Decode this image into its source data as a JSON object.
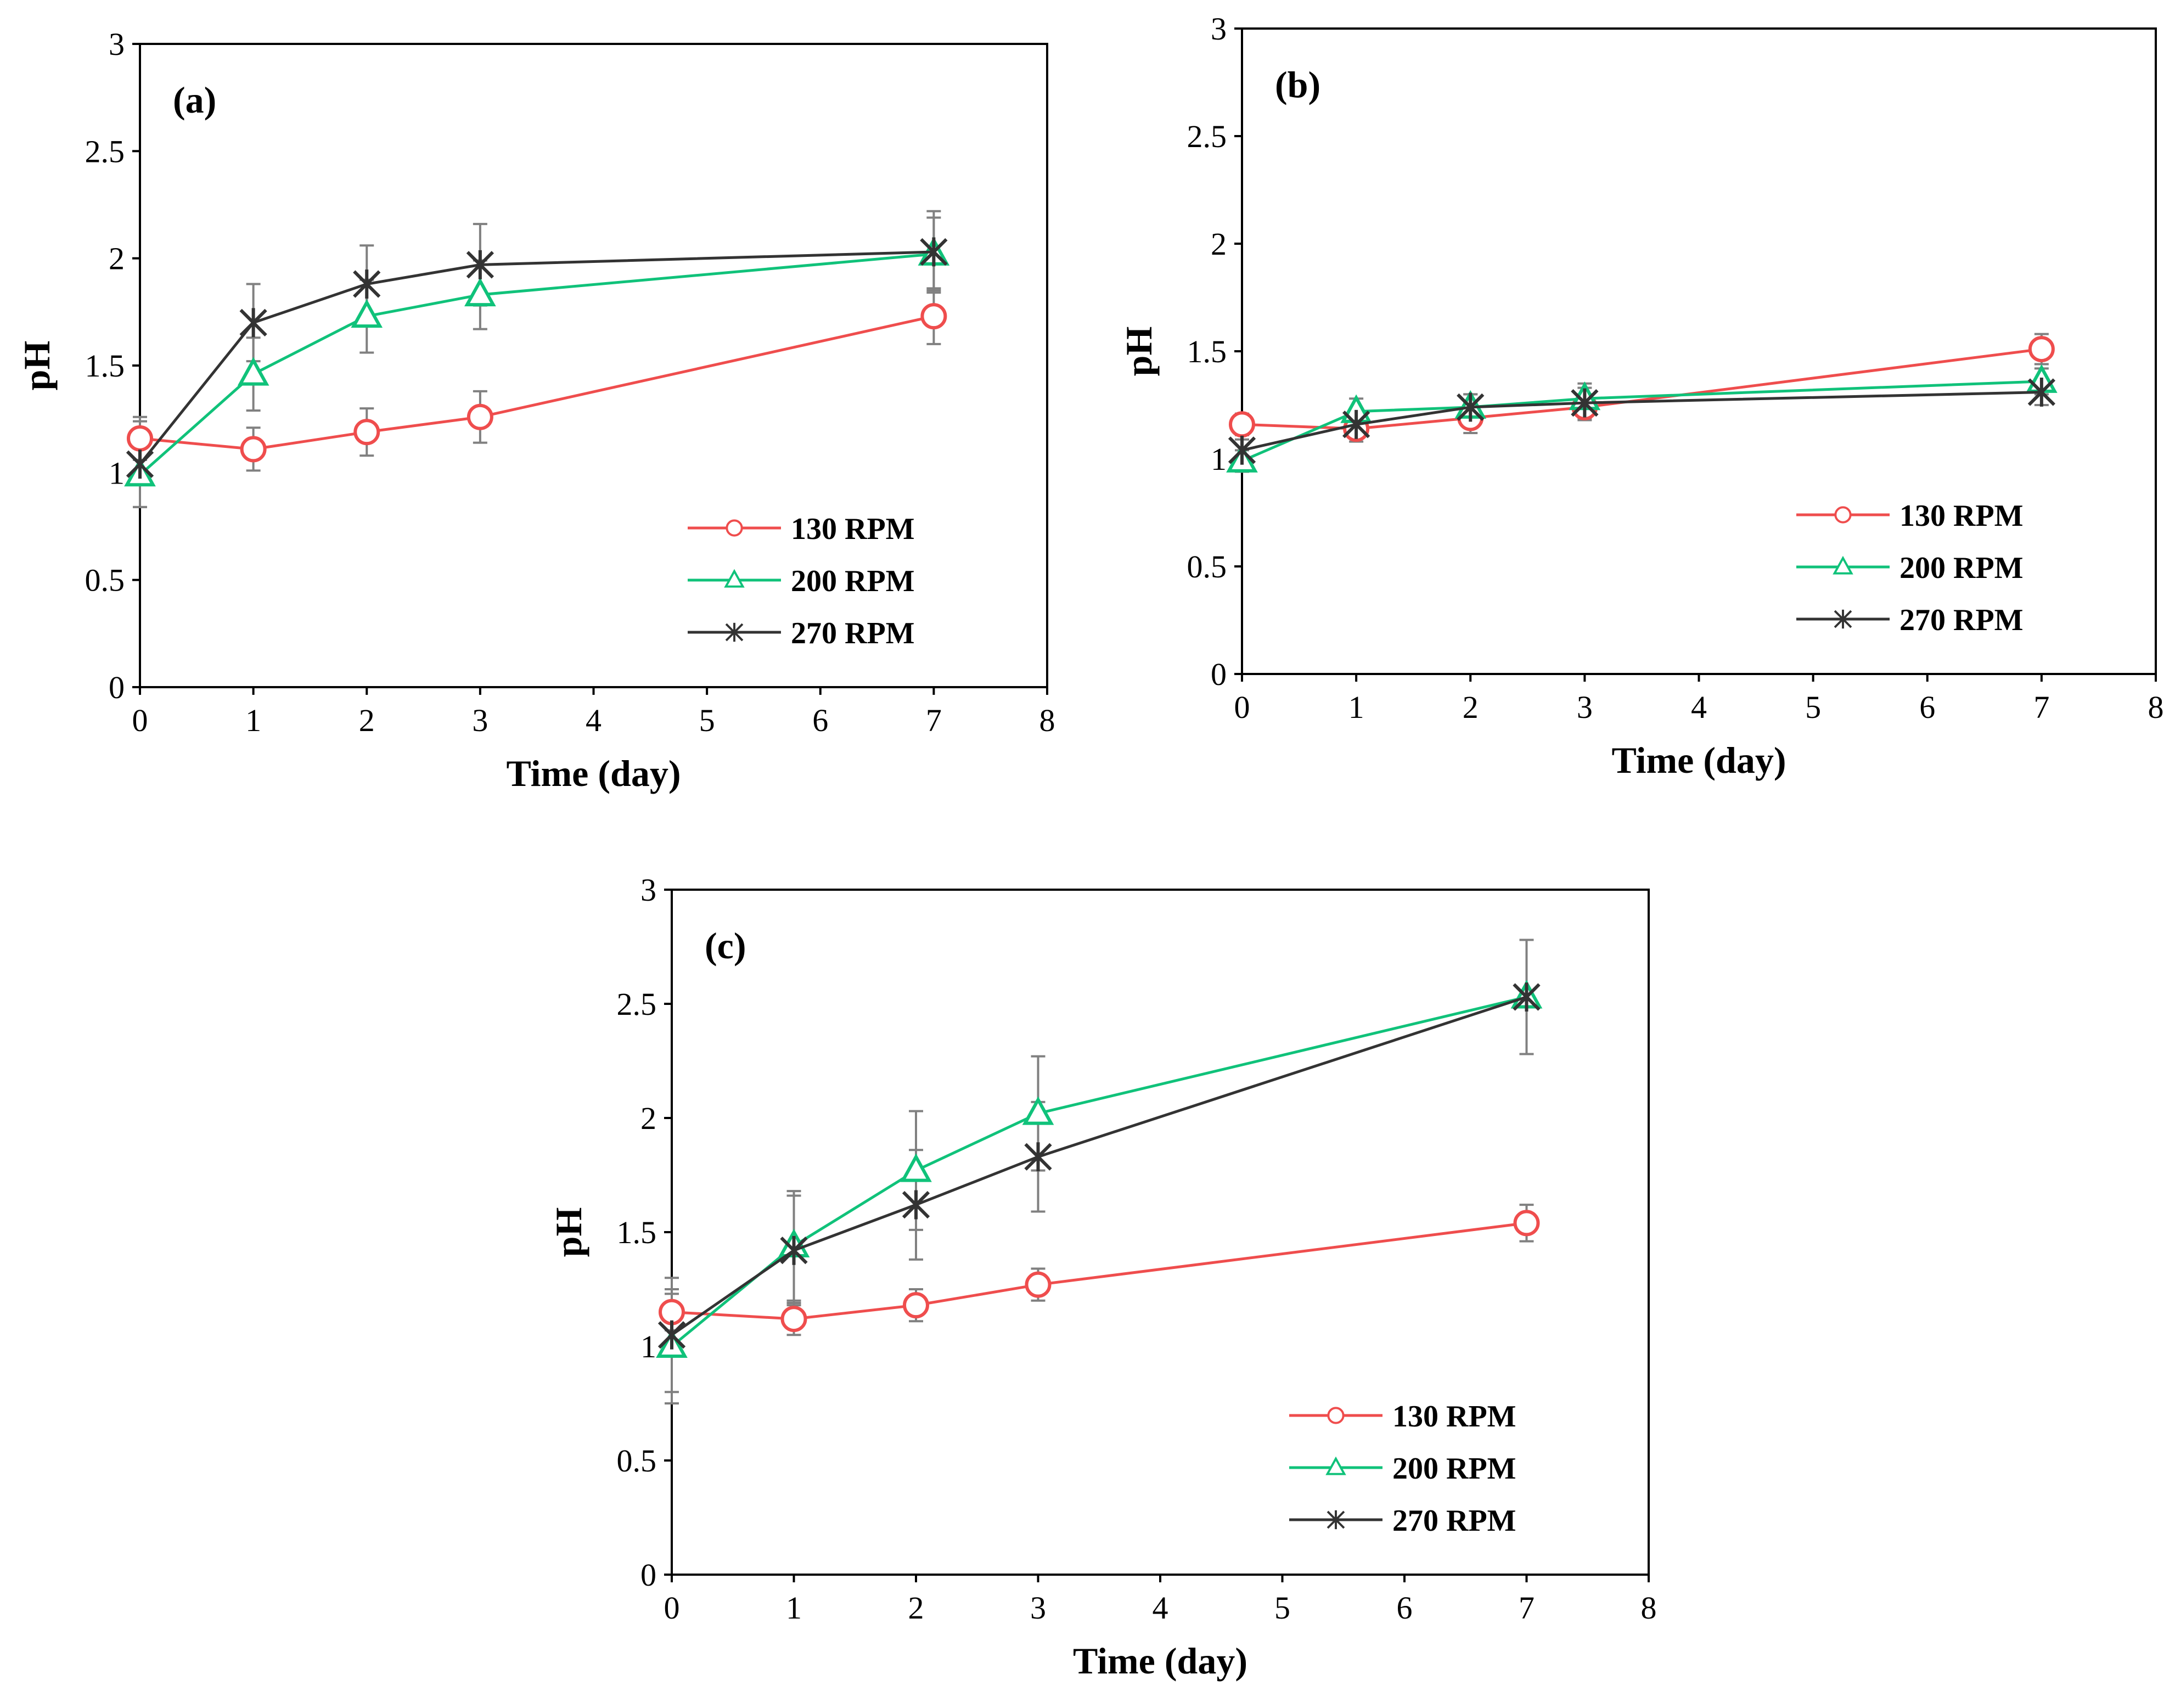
{
  "colors": {
    "rpm130": "#ef4d4d",
    "rpm200": "#10c27a",
    "rpm270": "#333333",
    "errorbar": "#808080",
    "axis": "#000000"
  },
  "chart_data": [
    {
      "type": "line",
      "panel_label": "(a)",
      "xlabel": "Time (day)",
      "ylabel": "pH",
      "xlim": [
        0,
        8
      ],
      "ylim": [
        0,
        3
      ],
      "xticks": [
        "0",
        "1",
        "2",
        "3",
        "4",
        "5",
        "6",
        "7",
        "8"
      ],
      "yticks": [
        "0",
        "0.5",
        "1",
        "1.5",
        "2",
        "2.5",
        "3"
      ],
      "legend_position": "bottom-right",
      "x": [
        0,
        1,
        2,
        3,
        7
      ],
      "series": [
        {
          "name": "130 RPM",
          "color_key": "rpm130",
          "marker": "circle",
          "values": [
            1.16,
            1.11,
            1.19,
            1.26,
            1.73
          ],
          "errors": [
            0.1,
            0.1,
            0.11,
            0.12,
            0.13
          ]
        },
        {
          "name": "200 RPM",
          "color_key": "rpm200",
          "marker": "triangle",
          "values": [
            0.99,
            1.46,
            1.73,
            1.83,
            2.02
          ],
          "errors": [
            0.15,
            0.17,
            0.17,
            0.16,
            0.17
          ]
        },
        {
          "name": "270 RPM",
          "color_key": "rpm270",
          "marker": "star",
          "values": [
            1.04,
            1.7,
            1.88,
            1.97,
            2.03
          ],
          "errors": [
            0.2,
            0.18,
            0.18,
            0.19,
            0.19
          ]
        }
      ]
    },
    {
      "type": "line",
      "panel_label": "(b)",
      "xlabel": "Time (day)",
      "ylabel": "pH",
      "xlim": [
        0,
        8
      ],
      "ylim": [
        0,
        3
      ],
      "xticks": [
        "0",
        "1",
        "2",
        "3",
        "4",
        "5",
        "6",
        "7",
        "8"
      ],
      "yticks": [
        "0",
        "0.5",
        "1",
        "1.5",
        "2",
        "2.5",
        "3"
      ],
      "legend_position": "bottom-right",
      "x": [
        0,
        1,
        2,
        3,
        7
      ],
      "series": [
        {
          "name": "130 RPM",
          "color_key": "rpm130",
          "marker": "circle",
          "values": [
            1.16,
            1.14,
            1.19,
            1.24,
            1.51
          ],
          "errors": [
            0.05,
            0.06,
            0.07,
            0.06,
            0.07
          ]
        },
        {
          "name": "200 RPM",
          "color_key": "rpm200",
          "marker": "triangle",
          "values": [
            0.99,
            1.22,
            1.24,
            1.28,
            1.36
          ],
          "errors": [
            0.05,
            0.06,
            0.06,
            0.07,
            0.06
          ]
        },
        {
          "name": "270 RPM",
          "color_key": "rpm270",
          "marker": "star",
          "values": [
            1.04,
            1.16,
            1.24,
            1.26,
            1.31
          ],
          "errors": [
            0.05,
            0.06,
            0.06,
            0.07,
            0.06
          ]
        }
      ]
    },
    {
      "type": "line",
      "panel_label": "(c)",
      "xlabel": "Time (day)",
      "ylabel": "pH",
      "xlim": [
        0,
        8
      ],
      "ylim": [
        0,
        3
      ],
      "xticks": [
        "0",
        "1",
        "2",
        "3",
        "4",
        "5",
        "6",
        "7",
        "8"
      ],
      "yticks": [
        "0",
        "0.5",
        "1",
        "1.5",
        "2",
        "2.5",
        "3"
      ],
      "legend_position": "bottom-right",
      "x": [
        0,
        1,
        2,
        3,
        7
      ],
      "series": [
        {
          "name": "130 RPM",
          "color_key": "rpm130",
          "marker": "circle",
          "values": [
            1.15,
            1.12,
            1.18,
            1.27,
            1.54
          ],
          "errors": [
            0.08,
            0.07,
            0.07,
            0.07,
            0.08
          ]
        },
        {
          "name": "200 RPM",
          "color_key": "rpm200",
          "marker": "triangle",
          "values": [
            1.0,
            1.44,
            1.77,
            2.02,
            2.53
          ],
          "errors": [
            0.25,
            0.24,
            0.26,
            0.25,
            0.25
          ]
        },
        {
          "name": "270 RPM",
          "color_key": "rpm270",
          "marker": "star",
          "values": [
            1.05,
            1.42,
            1.62,
            1.83,
            2.53
          ],
          "errors": [
            0.25,
            0.24,
            0.24,
            0.24,
            0.25
          ]
        }
      ]
    }
  ]
}
